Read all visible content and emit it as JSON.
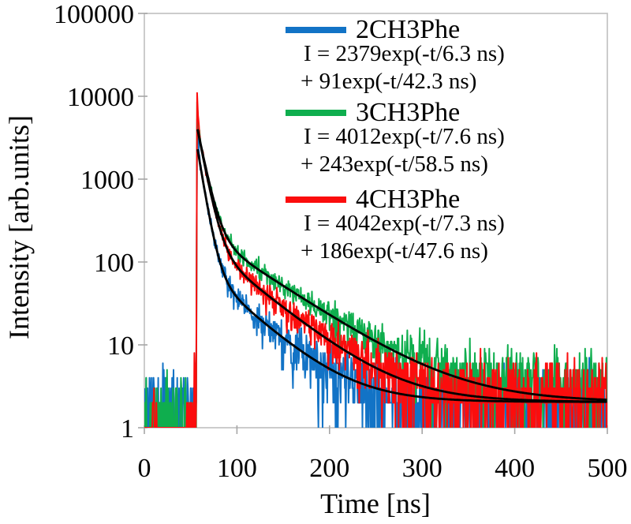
{
  "figure": {
    "background": "#ffffff",
    "border_color": "#bfbfbf",
    "tick_color": "#a6a6a6",
    "text_color": "#000000"
  },
  "chart_data": {
    "type": "line",
    "title": "",
    "xlabel": "Time [ns]",
    "ylabel": "Intensity [arb.units]",
    "x_axis": {
      "min": 0,
      "max": 500,
      "ticks": [
        0,
        100,
        200,
        300,
        400,
        500
      ]
    },
    "y_axis": {
      "scale": "log",
      "min": 1,
      "max": 100000,
      "tick_labels": [
        "1",
        "10",
        "100",
        "1000",
        "10000",
        "100000"
      ]
    },
    "grid": false,
    "legend_position": "top-right-inside",
    "pulse_time_ns": 57,
    "fit_background_counts": 2.05,
    "fit_line_color": "#000000",
    "series": [
      {
        "name": "2CH3Phe",
        "color": "#1273c6",
        "equation_line1": "I = 2379exp(-t/6.3 ns)",
        "equation_line2": "+ 91exp(-t/42.3 ns)",
        "fit": {
          "A1": 2379,
          "tau1": 6.3,
          "A2": 91,
          "tau2": 42.3
        },
        "peak_counts": 5200,
        "background_counts": 2.0,
        "pre_pulse_counts": 2.0,
        "pre_rise_counts": 2.0,
        "seed": 11
      },
      {
        "name": "3CH3Phe",
        "color": "#0fae4e",
        "equation_line1": "I = 4012exp(-t/7.6 ns)",
        "equation_line2": "+ 243exp(-t/58.5 ns)",
        "fit": {
          "A1": 4012,
          "tau1": 7.6,
          "A2": 243,
          "tau2": 58.5
        },
        "peak_counts": 8500,
        "background_counts": 2.9,
        "pre_pulse_counts": 1.45,
        "pre_rise_counts": 1.45,
        "seed": 22
      },
      {
        "name": "4CH3Phe",
        "color": "#fb0d0d",
        "equation_line1": "I = 4042exp(-t/7.3 ns)",
        "equation_line2": "+ 186exp(-t/47.6 ns)",
        "fit": {
          "A1": 4042,
          "tau1": 7.3,
          "A2": 186,
          "tau2": 47.6
        },
        "peak_counts": 11000,
        "background_counts": 2.4,
        "pre_pulse_counts": 0.35,
        "pre_rise_counts": 1.7,
        "seed": 33
      }
    ]
  }
}
